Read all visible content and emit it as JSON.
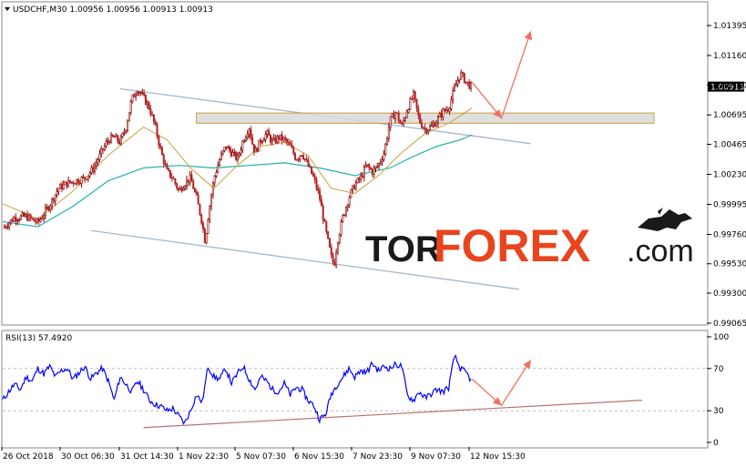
{
  "chart_data": [
    {
      "type": "candlestick",
      "title": "USDCHF,M30  1.00956 1.00956 1.00913 1.00913",
      "symbol": "USDCHF",
      "timeframe": "M30",
      "ohlc_header": "1.00956 1.00956 1.00913 1.00913",
      "current_price_label": "1.00913",
      "current_price": 1.00913,
      "ylim": [
        0.99065,
        1.01395
      ],
      "y_ticks": [
        "1.01395",
        "1.01160",
        "1.00930",
        "1.00695",
        "1.00465",
        "1.00230",
        "0.99995",
        "0.99760",
        "0.99530",
        "0.99300",
        "0.99065"
      ],
      "x_ticks": [
        "26 Oct 2018",
        "30 Oct 06:30",
        "31 Oct 14:30",
        "1 Nov 22:30",
        "5 Nov 07:30",
        "6 Nov 15:30",
        "7 Nov 23:30",
        "9 Nov 07:30",
        "12 Nov 15:30"
      ],
      "price_path": [
        [
          0,
          0.9981
        ],
        [
          2,
          0.9989
        ],
        [
          4,
          0.999
        ],
        [
          6,
          0.9985
        ],
        [
          8,
          0.9999
        ],
        [
          9.5,
          1.0012
        ],
        [
          11,
          1.0016
        ],
        [
          12.5,
          1.0018
        ],
        [
          14,
          1.002
        ],
        [
          15.5,
          1.0028
        ],
        [
          17,
          1.0042
        ],
        [
          18,
          1.005
        ],
        [
          19,
          1.0052
        ],
        [
          20,
          1.0048
        ],
        [
          21,
          1.006
        ],
        [
          22,
          1.0082
        ],
        [
          23,
          1.009
        ],
        [
          24,
          1.0083
        ],
        [
          25,
          1.0075
        ],
        [
          26,
          1.006
        ],
        [
          27,
          1.004
        ],
        [
          28,
          1.0025
        ],
        [
          29,
          1.002
        ],
        [
          30,
          1.001
        ],
        [
          31,
          1.0016
        ],
        [
          32,
          1.002
        ],
        [
          33,
          1.0005
        ],
        [
          34,
          0.9985
        ],
        [
          34.5,
          0.997
        ],
        [
          35,
          0.999
        ],
        [
          36,
          1.002
        ],
        [
          37,
          1.0035
        ],
        [
          38,
          1.0045
        ],
        [
          39,
          1.004
        ],
        [
          40,
          1.0035
        ],
        [
          41,
          1.005
        ],
        [
          42,
          1.006
        ],
        [
          42.5,
          1.0048
        ],
        [
          43,
          1.004
        ],
        [
          44,
          1.005
        ],
        [
          45,
          1.0055
        ],
        [
          46,
          1.0048
        ],
        [
          47,
          1.0052
        ],
        [
          48,
          1.005
        ],
        [
          49,
          1.0045
        ],
        [
          50,
          1.0035
        ],
        [
          51,
          1.004
        ],
        [
          52,
          1.003
        ],
        [
          53,
          1.002
        ],
        [
          54,
          1.0005
        ],
        [
          55,
          0.998
        ],
        [
          56,
          0.9958
        ],
        [
          56.5,
          0.9952
        ],
        [
          57,
          0.997
        ],
        [
          58,
          0.999
        ],
        [
          59,
          1.0005
        ],
        [
          60,
          1.0015
        ],
        [
          61,
          1.002
        ],
        [
          62,
          1.003
        ],
        [
          63,
          1.0025
        ],
        [
          64,
          1.003
        ],
        [
          65,
          1.004
        ],
        [
          66,
          1.0065
        ],
        [
          67,
          1.0072
        ],
        [
          68,
          1.006
        ],
        [
          69,
          1.0075
        ],
        [
          70,
          1.0085
        ],
        [
          71,
          1.0065
        ],
        [
          72,
          1.0058
        ],
        [
          73,
          1.006
        ],
        [
          74,
          1.0065
        ],
        [
          75,
          1.0072
        ],
        [
          76,
          1.0075
        ],
        [
          77,
          1.009
        ],
        [
          78,
          1.0102
        ],
        [
          79,
          1.0095
        ],
        [
          80,
          1.0091
        ]
      ],
      "ema_fast": [
        [
          0,
          1.0
        ],
        [
          6,
          0.9988
        ],
        [
          12,
          1.001
        ],
        [
          18,
          1.0038
        ],
        [
          24,
          1.006
        ],
        [
          28,
          1.005
        ],
        [
          32,
          1.0028
        ],
        [
          36,
          1.0012
        ],
        [
          40,
          1.003
        ],
        [
          44,
          1.0045
        ],
        [
          48,
          1.0048
        ],
        [
          52,
          1.0038
        ],
        [
          56,
          1.0012
        ],
        [
          60,
          1.0008
        ],
        [
          64,
          1.0022
        ],
        [
          68,
          1.004
        ],
        [
          72,
          1.0055
        ],
        [
          76,
          1.0063
        ],
        [
          80,
          1.0075
        ]
      ],
      "ema_slow": [
        [
          0,
          0.9986
        ],
        [
          6,
          0.9982
        ],
        [
          12,
          0.9998
        ],
        [
          18,
          1.0018
        ],
        [
          24,
          1.0028
        ],
        [
          30,
          1.003
        ],
        [
          36,
          1.0028
        ],
        [
          42,
          1.003
        ],
        [
          48,
          1.0032
        ],
        [
          54,
          1.0028
        ],
        [
          60,
          1.0022
        ],
        [
          66,
          1.0028
        ],
        [
          70,
          1.0037
        ],
        [
          74,
          1.0045
        ],
        [
          78,
          1.005
        ],
        [
          80,
          1.0054
        ]
      ],
      "channel_upper": [
        [
          20,
          1.009
        ],
        [
          90,
          1.0047
        ]
      ],
      "channel_lower": [
        [
          15,
          0.9979
        ],
        [
          88,
          0.9933
        ]
      ],
      "resistance_zone": [
        1.0063,
        1.0071
      ],
      "resistance_zone_x": [
        33,
        111
      ],
      "forecast_path": [
        [
          80,
          1.0095
        ],
        [
          85,
          1.0067
        ],
        [
          90,
          1.0135
        ]
      ],
      "x_range": [
        0,
        120
      ]
    },
    {
      "type": "line",
      "title": "RSI(13) 57.4920",
      "indicator": "RSI(13)",
      "value_label": "57.4920",
      "ylim": [
        0,
        100
      ],
      "y_ticks": [
        "100",
        "70",
        "30",
        "0"
      ],
      "levels": [
        70,
        30
      ],
      "values": [
        [
          0,
          40
        ],
        [
          1,
          48
        ],
        [
          2,
          55
        ],
        [
          3,
          50
        ],
        [
          4,
          62
        ],
        [
          5,
          58
        ],
        [
          6,
          70
        ],
        [
          7,
          65
        ],
        [
          8,
          72
        ],
        [
          9,
          62
        ],
        [
          10,
          68
        ],
        [
          11,
          70
        ],
        [
          12,
          60
        ],
        [
          13,
          66
        ],
        [
          14,
          72
        ],
        [
          15,
          60
        ],
        [
          16,
          66
        ],
        [
          17,
          70
        ],
        [
          18,
          58
        ],
        [
          19,
          40
        ],
        [
          20,
          62
        ],
        [
          21,
          55
        ],
        [
          22,
          48
        ],
        [
          23,
          58
        ],
        [
          24,
          50
        ],
        [
          25,
          40
        ],
        [
          26,
          36
        ],
        [
          27,
          34
        ],
        [
          28,
          30
        ],
        [
          29,
          32
        ],
        [
          30,
          25
        ],
        [
          31,
          18
        ],
        [
          32,
          30
        ],
        [
          33,
          45
        ],
        [
          34,
          38
        ],
        [
          35,
          72
        ],
        [
          36,
          62
        ],
        [
          37,
          60
        ],
        [
          38,
          70
        ],
        [
          39,
          56
        ],
        [
          40,
          65
        ],
        [
          41,
          72
        ],
        [
          42,
          60
        ],
        [
          43,
          50
        ],
        [
          44,
          62
        ],
        [
          45,
          58
        ],
        [
          46,
          50
        ],
        [
          47,
          48
        ],
        [
          48,
          56
        ],
        [
          49,
          45
        ],
        [
          50,
          52
        ],
        [
          51,
          50
        ],
        [
          52,
          40
        ],
        [
          53,
          35
        ],
        [
          54,
          22
        ],
        [
          55,
          26
        ],
        [
          56,
          46
        ],
        [
          57,
          55
        ],
        [
          58,
          62
        ],
        [
          59,
          70
        ],
        [
          60,
          62
        ],
        [
          61,
          68
        ],
        [
          62,
          66
        ],
        [
          63,
          75
        ],
        [
          64,
          68
        ],
        [
          65,
          72
        ],
        [
          66,
          70
        ],
        [
          67,
          74
        ],
        [
          68,
          72
        ],
        [
          69,
          44
        ],
        [
          70,
          40
        ],
        [
          71,
          48
        ],
        [
          72,
          42
        ],
        [
          73,
          46
        ],
        [
          74,
          50
        ],
        [
          75,
          48
        ],
        [
          76,
          52
        ],
        [
          77,
          82
        ],
        [
          78,
          70
        ],
        [
          79,
          66
        ],
        [
          80,
          57
        ]
      ],
      "support_line": [
        [
          24,
          14
        ],
        [
          109,
          40
        ]
      ],
      "forecast_path": [
        [
          80,
          60
        ],
        [
          85,
          35
        ],
        [
          90,
          78
        ]
      ]
    }
  ],
  "watermark": {
    "part1": "TOR",
    "part2": "FOREX",
    "part3": ".com",
    "colors": {
      "tor": "#1a1a1a",
      "forex": "#e8441e",
      "com": "#1a1a1a"
    }
  },
  "colors": {
    "candle_up": "#8b0000",
    "candle_down": "#b22222",
    "ema_fast": "#c8a23c",
    "ema_slow": "#20b2aa",
    "channel": "#a7b7cc",
    "zone_fill": "#d9d9d9",
    "zone_border": "#c8a23c",
    "forecast": "#f07060",
    "rsi_line": "#0000ff",
    "rsi_support": "#b57470",
    "price_box": "#000000"
  }
}
